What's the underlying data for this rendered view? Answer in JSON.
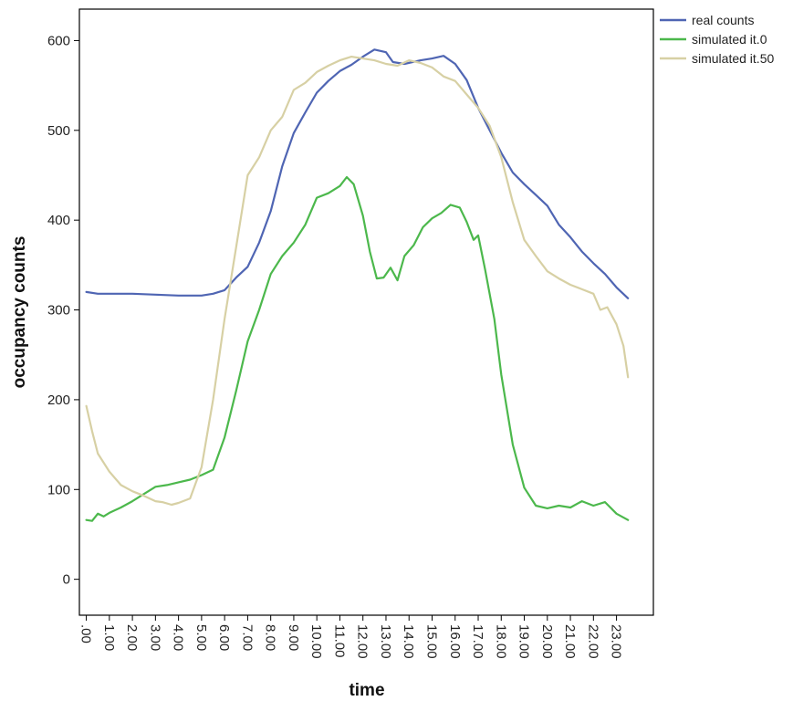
{
  "chart_data": {
    "type": "line",
    "title": "",
    "xlabel": "time",
    "ylabel": "occupancy counts",
    "ylim": [
      -40,
      635
    ],
    "xlim": [
      -0.3,
      24.6
    ],
    "grid": false,
    "legend_position": "right-top",
    "categories": [
      ".00",
      "1.00",
      "2.00",
      "3.00",
      "4.00",
      "5.00",
      "6.00",
      "7.00",
      "8.00",
      "9.00",
      "10.00",
      "11.00",
      "12.00",
      "13.00",
      "14.00",
      "15.00",
      "16.00",
      "17.00",
      "18.00",
      "19.00",
      "20.00",
      "21.00",
      "22.00",
      "23.00"
    ],
    "yticks": [
      0,
      100,
      200,
      300,
      400,
      500,
      600
    ],
    "ytick_labels": [
      "0",
      "100",
      "200",
      "300",
      "400",
      "500",
      "600"
    ],
    "series": [
      {
        "name": "real counts",
        "color": "#4f65b3",
        "x": [
          0,
          0.5,
          1,
          2,
          3,
          4,
          5,
          5.5,
          6,
          6.5,
          7,
          7.5,
          8,
          8.5,
          9,
          9.5,
          10,
          10.5,
          11,
          11.5,
          12,
          12.5,
          13,
          13.3,
          13.8,
          14.5,
          15,
          15.5,
          16,
          16.5,
          17,
          17.5,
          18,
          18.5,
          19,
          19.5,
          20,
          20.5,
          21,
          21.5,
          22,
          22.5,
          23,
          23.5
        ],
        "values": [
          320,
          318,
          318,
          318,
          317,
          316,
          316,
          318,
          322,
          336,
          348,
          375,
          410,
          460,
          497,
          520,
          542,
          555,
          566,
          573,
          582,
          590,
          587,
          576,
          574,
          578,
          580,
          583,
          574,
          556,
          525,
          500,
          475,
          453,
          440,
          428,
          416,
          395,
          381,
          365,
          352,
          340,
          325,
          313
        ]
      },
      {
        "name": "simulated it.0",
        "color": "#4cb84c",
        "x": [
          0,
          0.25,
          0.5,
          0.75,
          1,
          1.5,
          2,
          2.5,
          3,
          3.5,
          4,
          4.5,
          5,
          5.5,
          6,
          6.5,
          7,
          7.5,
          8,
          8.5,
          9,
          9.5,
          10,
          10.5,
          11,
          11.3,
          11.6,
          12,
          12.3,
          12.6,
          12.9,
          13.2,
          13.5,
          13.8,
          14.2,
          14.6,
          15,
          15.4,
          15.8,
          16.2,
          16.5,
          16.8,
          17,
          17.3,
          17.7,
          18,
          18.5,
          19,
          19.5,
          20,
          20.5,
          21,
          21.5,
          22,
          22.5,
          23,
          23.5
        ],
        "values": [
          66,
          65,
          73,
          70,
          74,
          80,
          87,
          95,
          103,
          105,
          108,
          111,
          116,
          122,
          158,
          210,
          265,
          300,
          340,
          360,
          375,
          395,
          425,
          430,
          438,
          448,
          440,
          405,
          365,
          335,
          336,
          347,
          333,
          360,
          372,
          392,
          402,
          408,
          417,
          414,
          398,
          378,
          383,
          345,
          290,
          228,
          150,
          102,
          82,
          79,
          82,
          80,
          87,
          82,
          86,
          73,
          66
        ]
      },
      {
        "name": "simulated it.50",
        "color": "#d7d0a4",
        "x": [
          0,
          0.25,
          0.5,
          1,
          1.5,
          2,
          2.5,
          3,
          3.3,
          3.7,
          4,
          4.5,
          5,
          5.5,
          6,
          6.5,
          7,
          7.5,
          8,
          8.5,
          9,
          9.5,
          10,
          10.5,
          11,
          11.5,
          12,
          12.5,
          13,
          13.5,
          14,
          14.5,
          15,
          15.5,
          16,
          16.5,
          17,
          17.5,
          18,
          18.5,
          19,
          19.5,
          20,
          20.5,
          21,
          21.5,
          22,
          22.3,
          22.6,
          23,
          23.3,
          23.5
        ],
        "values": [
          193,
          165,
          140,
          120,
          105,
          98,
          93,
          87,
          86,
          83,
          85,
          90,
          125,
          200,
          290,
          370,
          450,
          470,
          500,
          515,
          545,
          553,
          565,
          572,
          578,
          582,
          580,
          578,
          574,
          572,
          578,
          575,
          570,
          560,
          555,
          540,
          525,
          505,
          470,
          420,
          378,
          360,
          343,
          335,
          328,
          323,
          318,
          300,
          303,
          284,
          260,
          225
        ]
      }
    ]
  }
}
